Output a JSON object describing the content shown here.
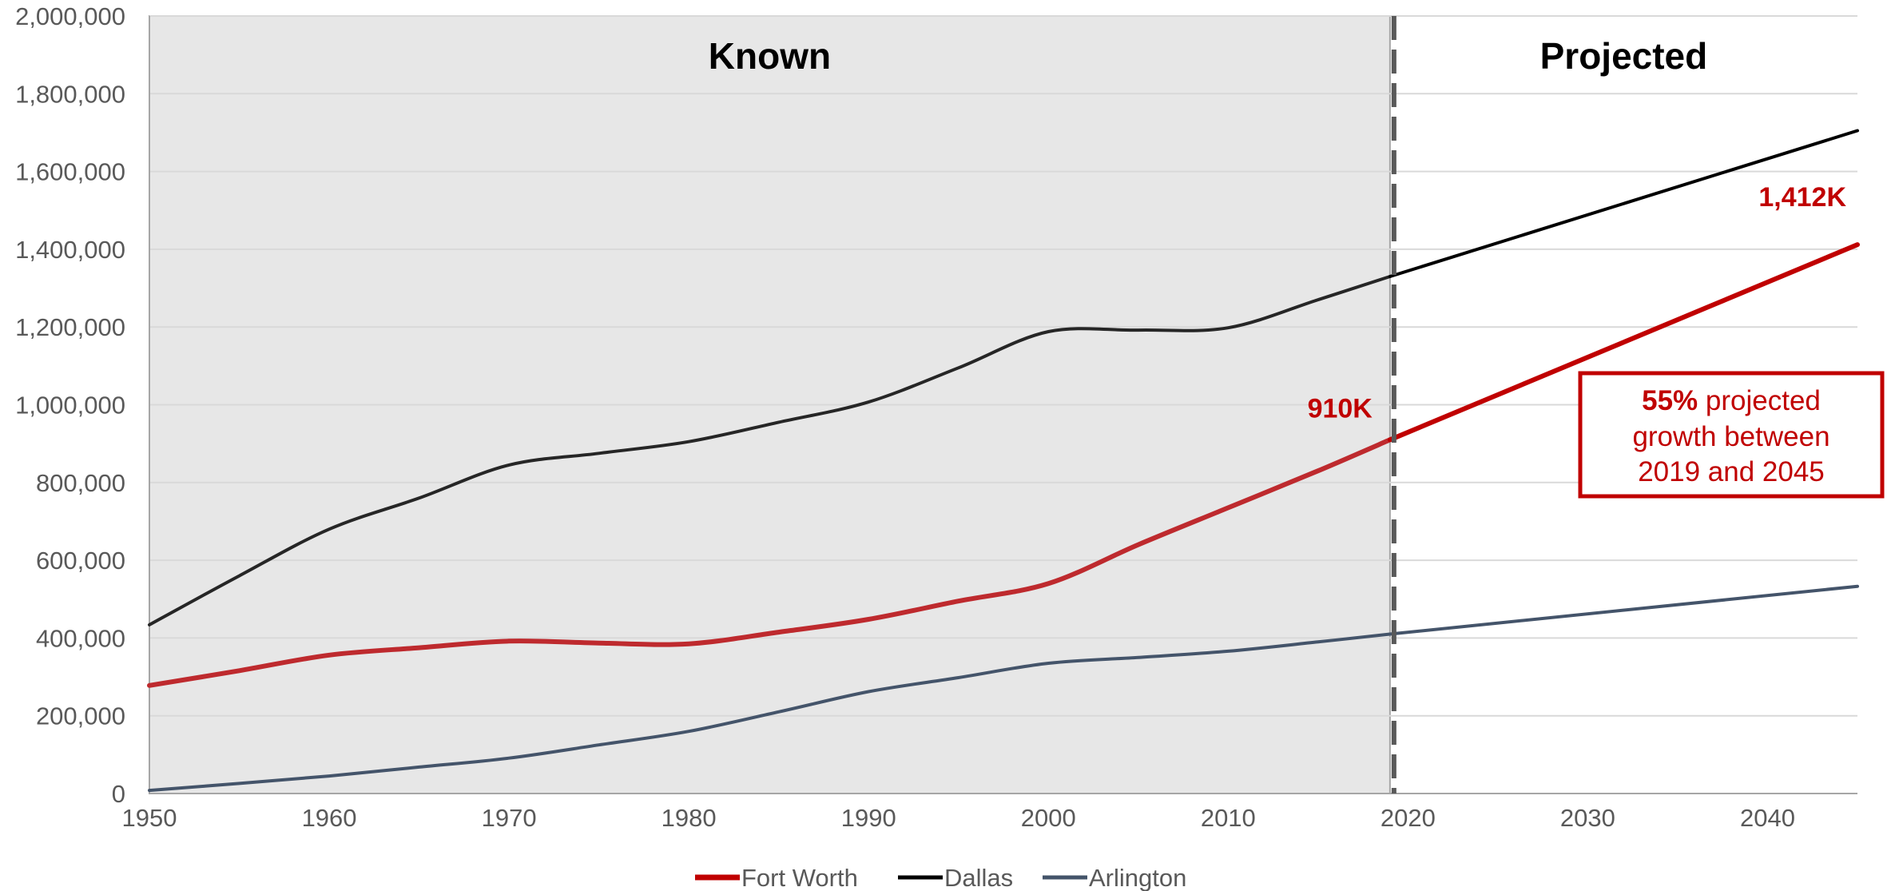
{
  "chart_data": {
    "type": "line",
    "x_range": [
      1950,
      2045
    ],
    "ylim": [
      0,
      2000000
    ],
    "y_ticks": [
      0,
      200000,
      400000,
      600000,
      800000,
      1000000,
      1200000,
      1400000,
      1600000,
      1800000,
      2000000
    ],
    "y_tick_labels": [
      "0",
      "200,000",
      "400,000",
      "600,000",
      "800,000",
      "1,000,000",
      "1,200,000",
      "1,400,000",
      "1,600,000",
      "1,800,000",
      "2,000,000"
    ],
    "x_ticks": [
      1950,
      1960,
      1970,
      1980,
      1990,
      2000,
      2010,
      2020,
      2030,
      2040
    ],
    "x_tick_labels": [
      "1950",
      "1960",
      "1970",
      "1980",
      "1990",
      "2000",
      "2010",
      "2020",
      "2030",
      "2040"
    ],
    "grid": "horizontal",
    "legend_position": "bottom",
    "regions": [
      {
        "label": "Known",
        "x_start": 1950,
        "x_end": 2019,
        "color": "#e7e7e7"
      },
      {
        "label": "Projected",
        "x_start": 2019,
        "x_end": 2045,
        "color": "#ffffff"
      }
    ],
    "divider_year": 2019,
    "series": [
      {
        "name": "Fort Worth",
        "color": "#be2a2e",
        "projection_color": "#c00000",
        "x": [
          1950,
          1955,
          1960,
          1965,
          1970,
          1975,
          1980,
          1985,
          1990,
          1995,
          2000,
          2005,
          2010,
          2015,
          2019,
          2045
        ],
        "values": [
          278000,
          316000,
          356000,
          375000,
          392000,
          387000,
          385000,
          415000,
          448000,
          495000,
          540000,
          640000,
          735000,
          830000,
          910000,
          1412000
        ]
      },
      {
        "name": "Dallas",
        "color": "#262626",
        "projection_color": "#000000",
        "x": [
          1950,
          1955,
          1960,
          1965,
          1970,
          1975,
          1980,
          1985,
          1990,
          1995,
          2000,
          2005,
          2010,
          2015,
          2019,
          2045
        ],
        "values": [
          434000,
          560000,
          680000,
          760000,
          845000,
          875000,
          905000,
          955000,
          1007000,
          1095000,
          1188000,
          1192000,
          1198000,
          1270000,
          1330000,
          1705000
        ]
      },
      {
        "name": "Arlington",
        "color": "#44546a",
        "projection_color": "#44546a",
        "x": [
          1950,
          1955,
          1960,
          1965,
          1970,
          1975,
          1980,
          1985,
          1990,
          1995,
          2000,
          2005,
          2010,
          2015,
          2019,
          2045
        ],
        "values": [
          8000,
          26000,
          45000,
          68000,
          91000,
          125000,
          160000,
          210000,
          262000,
          298000,
          335000,
          350000,
          366000,
          390000,
          410000,
          533000
        ]
      }
    ],
    "annotations": [
      {
        "text": "910K",
        "x": 2019,
        "y": 910000,
        "color": "#c00000"
      },
      {
        "text": "1,412K",
        "x": 2045,
        "y": 1412000,
        "color": "#c00000"
      }
    ],
    "callout": {
      "bold": "55%",
      "line1_rest": " projected",
      "line2": "growth between",
      "line3": "2019 and 2045",
      "color": "#c00000"
    }
  }
}
